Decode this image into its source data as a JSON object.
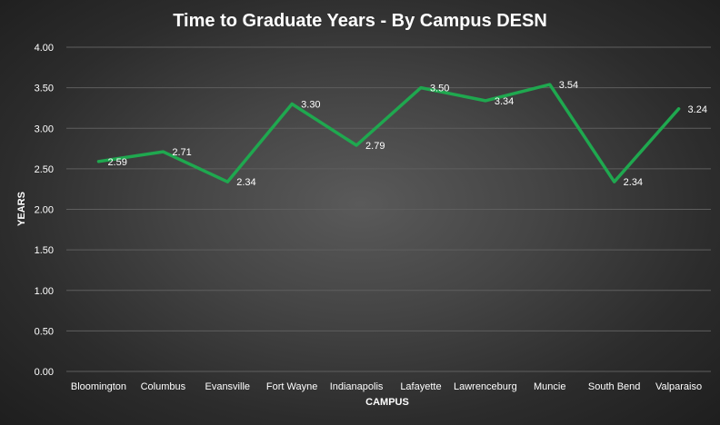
{
  "chart_data": {
    "type": "line",
    "title": "Time to Graduate Years - By Campus DESN",
    "xlabel": "CAMPUS",
    "ylabel": "YEARS",
    "categories": [
      "Bloomington",
      "Columbus",
      "Evansville",
      "Fort Wayne",
      "Indianapolis",
      "Lafayette",
      "Lawrenceburg",
      "Muncie",
      "South Bend",
      "Valparaiso"
    ],
    "series": [
      {
        "values": [
          2.59,
          2.71,
          2.34,
          3.3,
          2.79,
          3.5,
          3.34,
          3.54,
          2.34,
          3.24
        ]
      }
    ],
    "data_labels": [
      "2.59",
      "2.71",
      "2.34",
      "3.30",
      "2.79",
      "3.50",
      "3.34",
      "3.54",
      "2.34",
      "3.24"
    ],
    "ylim": [
      0,
      4
    ],
    "y_ticks": [
      "0.00",
      "0.50",
      "1.00",
      "1.50",
      "2.00",
      "2.50",
      "3.00",
      "3.50",
      "4.00"
    ],
    "grid": true,
    "legend": "none",
    "line_color": "#1fa84f"
  }
}
